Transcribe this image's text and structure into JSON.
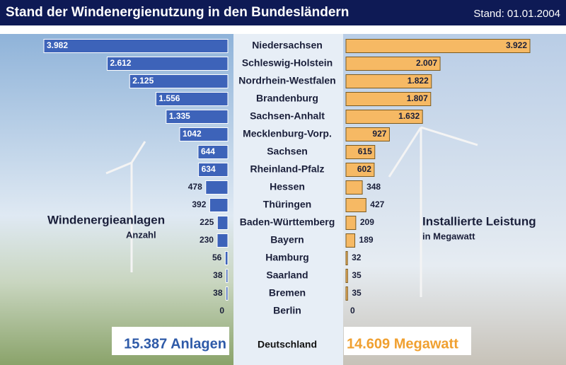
{
  "chart_data": {
    "type": "butterfly",
    "title": "Stand der Windenergienutzung in den Bundesländern",
    "subtitle": "Stand: 01.01.2004",
    "categories": [
      "Niedersachsen",
      "Schleswig-Holstein",
      "Nordrhein-Westfalen",
      "Brandenburg",
      "Sachsen-Anhalt",
      "Mecklenburg-Vorp.",
      "Sachsen",
      "Rheinland-Pfalz",
      "Hessen",
      "Thüringen",
      "Baden-Württemberg",
      "Bayern",
      "Hamburg",
      "Saarland",
      "Bremen",
      "Berlin"
    ],
    "series": [
      {
        "name": "Windenergieanlagen",
        "unit": "Anzahl",
        "color": "#3d63b9",
        "values": [
          3982,
          2612,
          2125,
          1556,
          1335,
          1042,
          644,
          634,
          478,
          392,
          225,
          230,
          56,
          38,
          38,
          0
        ],
        "value_labels": [
          "3.982",
          "2.612",
          "2.125",
          "1.556",
          "1.335",
          "1042",
          "644",
          "634",
          "478",
          "392",
          "225",
          "230",
          "56",
          "38",
          "38",
          "0"
        ],
        "total": "15.387 Anlagen"
      },
      {
        "name": "Installierte Leistung",
        "unit": "in Megawatt",
        "color": "#f6b964",
        "values": [
          3922,
          2007,
          1822,
          1807,
          1632,
          927,
          615,
          602,
          348,
          427,
          209,
          189,
          32,
          35,
          35,
          0
        ],
        "value_labels": [
          "3.922",
          "2.007",
          "1.822",
          "1.807",
          "1.632",
          "927",
          "615",
          "602",
          "348",
          "427",
          "209",
          "189",
          "32",
          "35",
          "35",
          "0"
        ],
        "total": "14.609 Megawatt"
      }
    ],
    "total_label": "Deutschland"
  }
}
